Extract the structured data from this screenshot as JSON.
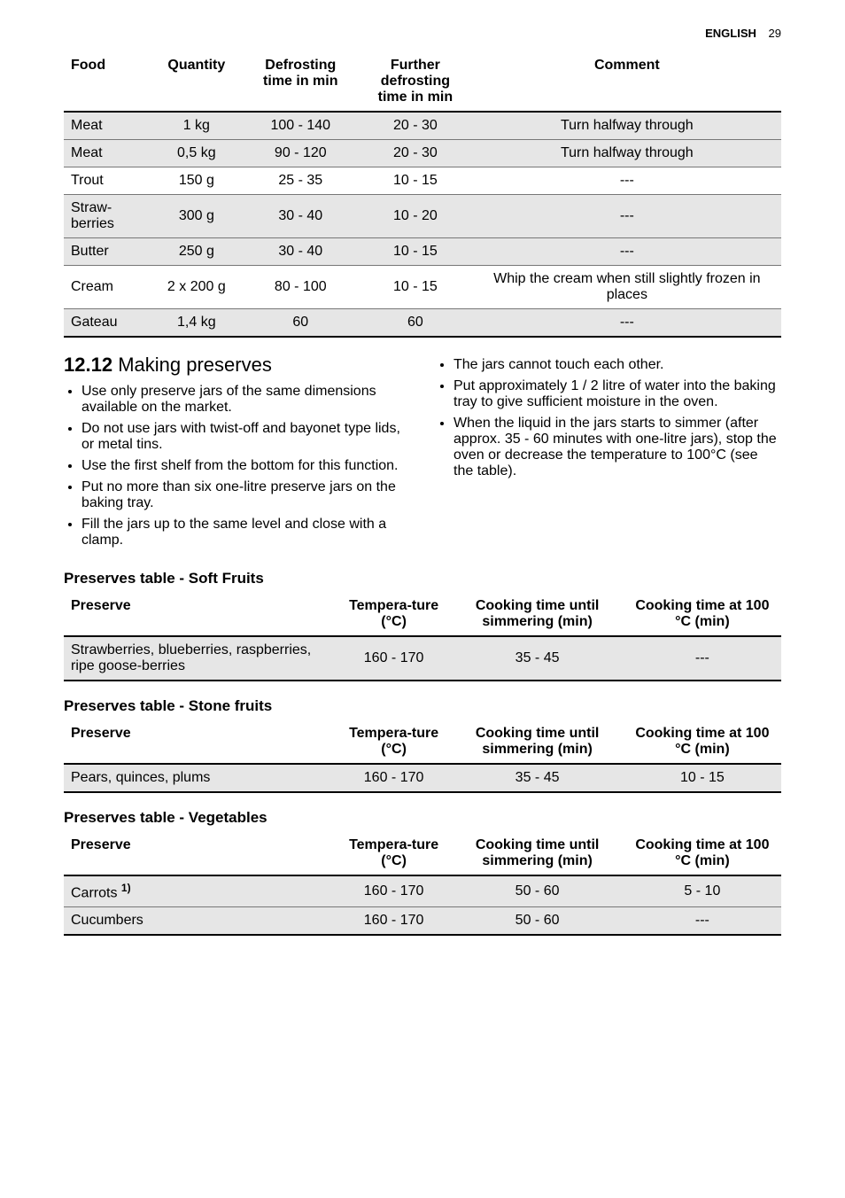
{
  "header": {
    "label": "ENGLISH",
    "page": "29"
  },
  "defrost_table": {
    "columns": [
      "Food",
      "Quantity",
      "Defrosting time in min",
      "Further defrosting time in min",
      "Comment"
    ],
    "rows": [
      {
        "food": "Meat",
        "qty": "1 kg",
        "defrost": "100 - 140",
        "further": "20 - 30",
        "comment": "Turn halfway through",
        "shaded": true
      },
      {
        "food": "Meat",
        "qty": "0,5 kg",
        "defrost": "90 - 120",
        "further": "20 - 30",
        "comment": "Turn halfway through",
        "shaded": true
      },
      {
        "food": "Trout",
        "qty": "150 g",
        "defrost": "25 - 35",
        "further": "10 - 15",
        "comment": "---",
        "shaded": false
      },
      {
        "food": "Straw-berries",
        "qty": "300 g",
        "defrost": "30 - 40",
        "further": "10 - 20",
        "comment": "---",
        "shaded": true
      },
      {
        "food": "Butter",
        "qty": "250 g",
        "defrost": "30 - 40",
        "further": "10 - 15",
        "comment": "---",
        "shaded": true
      },
      {
        "food": "Cream",
        "qty": "2 x 200 g",
        "defrost": "80 - 100",
        "further": "10 - 15",
        "comment": "Whip the cream when still slightly frozen in places",
        "shaded": false
      },
      {
        "food": "Gateau",
        "qty": "1,4 kg",
        "defrost": "60",
        "further": "60",
        "comment": "---",
        "shaded": true
      }
    ]
  },
  "section": {
    "number": "12.12",
    "title": "Making preserves"
  },
  "bullets_left": [
    "Use only preserve jars of the same dimensions available on the market.",
    "Do not use jars with twist-off and bayonet type lids, or metal tins.",
    "Use the first shelf from the bottom for this function.",
    "Put no more than six one-litre preserve jars on the baking tray.",
    "Fill the jars up to the same level and close with a clamp."
  ],
  "bullets_right": [
    "The jars cannot touch each other.",
    "Put approximately 1 / 2 litre of water into the baking tray to give sufficient moisture in the oven.",
    "When the liquid in the jars starts to simmer (after approx. 35 - 60 minutes with one-litre jars), stop the oven or decrease the temperature to 100°C (see the table)."
  ],
  "preserve_columns": [
    "Preserve",
    "Tempera-ture (°C)",
    "Cooking time until simmering (min)",
    "Cooking time at 100 °C (min)"
  ],
  "soft_fruits": {
    "heading": "Preserves table - Soft Fruits",
    "rows": [
      {
        "preserve": "Strawberries, blueberries, raspberries, ripe goose-berries",
        "temp": "160 - 170",
        "simmer": "35 - 45",
        "at100": "---",
        "shaded": true
      }
    ]
  },
  "stone_fruits": {
    "heading": "Preserves table - Stone fruits",
    "rows": [
      {
        "preserve": "Pears, quinces, plums",
        "temp": "160 - 170",
        "simmer": "35 - 45",
        "at100": "10 - 15",
        "shaded": true
      }
    ]
  },
  "vegetables": {
    "heading": "Preserves table - Vegetables",
    "rows": [
      {
        "preserve": "Carrots",
        "note": "1)",
        "temp": "160 - 170",
        "simmer": "50 - 60",
        "at100": "5 - 10",
        "shaded": true
      },
      {
        "preserve": "Cucumbers",
        "note": "",
        "temp": "160 - 170",
        "simmer": "50 - 60",
        "at100": "---",
        "shaded": true
      }
    ]
  }
}
